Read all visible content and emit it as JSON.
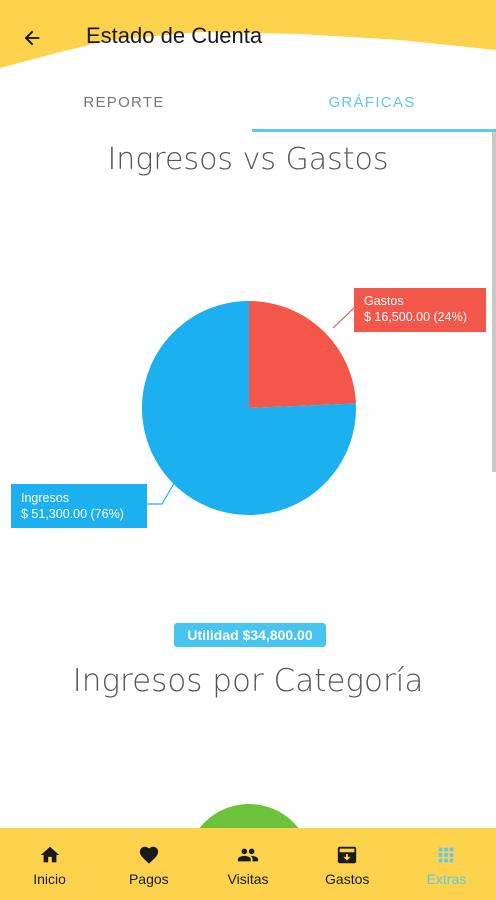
{
  "header": {
    "title": "Estado de Cuenta"
  },
  "tabs": [
    {
      "label": "REPORTE",
      "active": false
    },
    {
      "label": "GRÁFICAS",
      "active": true
    }
  ],
  "chart_titles": {
    "first": "Ingresos vs Gastos",
    "second": "Ingresos por Categoría"
  },
  "chart_data": {
    "type": "pie",
    "title": "Ingresos vs Gastos",
    "slices": [
      {
        "name": "Gastos",
        "value": 16500,
        "label": "$ 16,500.00 (24%)",
        "percent": 24,
        "color": "#f2574a"
      },
      {
        "name": "Ingresos",
        "value": 51300,
        "label": "$ 51,300.00 (76%)",
        "percent": 76,
        "color": "#1db0f0"
      }
    ]
  },
  "utility_badge": "Utilidad $34,800.00",
  "colors": {
    "header": "#fdd24c",
    "accent": "#5cc9ee",
    "gastos": "#f2574a",
    "ingresos": "#1db0f0",
    "second_chart": "#6cc23a"
  },
  "bottom_nav": [
    {
      "label": "Inicio",
      "icon": "home-icon"
    },
    {
      "label": "Pagos",
      "icon": "heart-icon"
    },
    {
      "label": "Visitas",
      "icon": "people-icon"
    },
    {
      "label": "Gastos",
      "icon": "archive-icon"
    },
    {
      "label": "Extras",
      "icon": "grid-icon",
      "active": true
    }
  ]
}
